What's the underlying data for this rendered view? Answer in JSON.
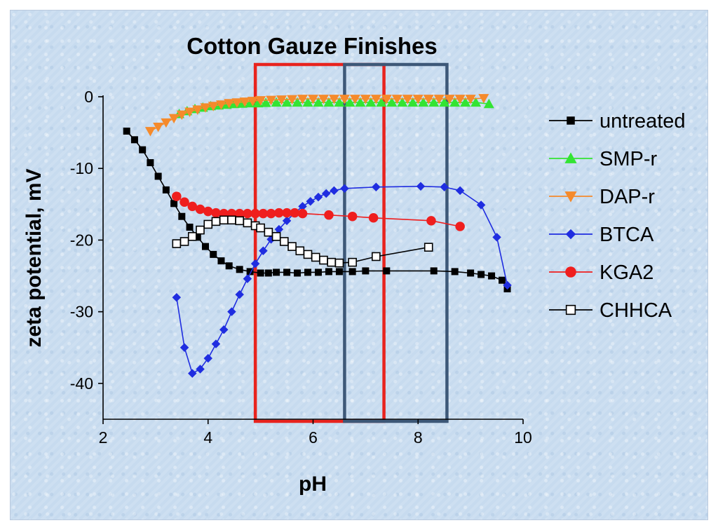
{
  "chart_data": {
    "type": "scatter",
    "title": "Cotton Gauze Finishes",
    "xlabel": "pH",
    "ylabel": "zeta potential, mV",
    "xlim": [
      2,
      10
    ],
    "ylim": [
      -45,
      0
    ],
    "xticks": [
      2,
      4,
      6,
      8,
      10
    ],
    "yticks": [
      0,
      -10,
      -20,
      -30,
      -40
    ],
    "grid": false,
    "legend_position": "right",
    "highlight_boxes": [
      {
        "color": "#e8231e",
        "x_range": [
          4.9,
          7.35
        ]
      },
      {
        "color": "#3d5878",
        "x_range": [
          6.6,
          8.55
        ]
      }
    ],
    "series": [
      {
        "name": "untreated",
        "color": "#000000",
        "marker": "square-filled",
        "x": [
          2.45,
          2.6,
          2.75,
          2.9,
          3.05,
          3.2,
          3.35,
          3.5,
          3.65,
          3.8,
          3.95,
          4.1,
          4.25,
          4.4,
          4.6,
          4.8,
          5.0,
          5.15,
          5.3,
          5.5,
          5.7,
          5.9,
          6.1,
          6.3,
          6.5,
          6.75,
          7.0,
          7.4,
          8.3,
          8.7,
          9.0,
          9.2,
          9.4,
          9.6,
          9.7
        ],
        "y": [
          -4.8,
          -6.0,
          -7.4,
          -9.2,
          -11.1,
          -13.0,
          -14.9,
          -16.7,
          -18.2,
          -19.6,
          -20.9,
          -22.0,
          -22.9,
          -23.6,
          -24.1,
          -24.4,
          -24.6,
          -24.6,
          -24.5,
          -24.5,
          -24.6,
          -24.5,
          -24.5,
          -24.4,
          -24.4,
          -24.4,
          -24.3,
          -24.3,
          -24.3,
          -24.4,
          -24.6,
          -24.8,
          -25.0,
          -25.6,
          -26.8
        ]
      },
      {
        "name": "SMP-r",
        "color": "#33e433",
        "marker": "triangle-up",
        "x": [
          3.45,
          3.6,
          3.75,
          3.9,
          4.05,
          4.2,
          4.35,
          4.5,
          4.65,
          4.8,
          4.95,
          5.1,
          5.3,
          5.5,
          5.7,
          5.9,
          6.1,
          6.3,
          6.5,
          6.7,
          6.9,
          7.1,
          7.3,
          7.5,
          7.7,
          7.9,
          8.1,
          8.3,
          8.5,
          8.7,
          8.9,
          9.1,
          9.35
        ],
        "y": [
          -2.4,
          -2.0,
          -1.7,
          -1.5,
          -1.3,
          -1.2,
          -1.1,
          -1.0,
          -0.95,
          -0.9,
          -0.9,
          -0.85,
          -0.8,
          -0.8,
          -0.8,
          -0.8,
          -0.8,
          -0.8,
          -0.8,
          -0.8,
          -0.8,
          -0.8,
          -0.8,
          -0.8,
          -0.8,
          -0.8,
          -0.8,
          -0.8,
          -0.8,
          -0.8,
          -0.8,
          -0.8,
          -1.0
        ]
      },
      {
        "name": "DAP-r",
        "color": "#f58a2b",
        "marker": "triangle-down",
        "x": [
          2.9,
          3.05,
          3.2,
          3.35,
          3.5,
          3.65,
          3.8,
          3.95,
          4.1,
          4.25,
          4.4,
          4.55,
          4.7,
          4.85,
          5.0,
          5.2,
          5.4,
          5.6,
          5.8,
          6.0,
          6.2,
          6.4,
          6.6,
          6.8,
          7.0,
          7.2,
          7.4,
          7.6,
          7.8,
          8.0,
          8.2,
          8.4,
          8.6,
          8.8,
          9.0,
          9.25
        ],
        "y": [
          -4.8,
          -4.2,
          -3.6,
          -3.0,
          -2.5,
          -2.1,
          -1.8,
          -1.5,
          -1.3,
          -1.1,
          -0.9,
          -0.8,
          -0.7,
          -0.6,
          -0.5,
          -0.45,
          -0.4,
          -0.35,
          -0.3,
          -0.3,
          -0.3,
          -0.3,
          -0.3,
          -0.3,
          -0.3,
          -0.3,
          -0.3,
          -0.3,
          -0.3,
          -0.3,
          -0.3,
          -0.3,
          -0.3,
          -0.3,
          -0.3,
          -0.2
        ]
      },
      {
        "name": "BTCA",
        "color": "#1f2de0",
        "marker": "diamond",
        "x": [
          3.4,
          3.55,
          3.7,
          3.85,
          4.0,
          4.15,
          4.3,
          4.45,
          4.6,
          4.75,
          4.9,
          5.05,
          5.2,
          5.35,
          5.5,
          5.65,
          5.8,
          5.95,
          6.1,
          6.25,
          6.4,
          6.6,
          7.2,
          8.05,
          8.5,
          8.8,
          9.2,
          9.5,
          9.7
        ],
        "y": [
          -28.0,
          -35.0,
          -38.6,
          -38.0,
          -36.5,
          -34.5,
          -32.5,
          -30.0,
          -27.6,
          -25.4,
          -23.3,
          -21.5,
          -19.9,
          -18.5,
          -17.3,
          -16.2,
          -15.3,
          -14.6,
          -14.0,
          -13.5,
          -13.1,
          -12.8,
          -12.6,
          -12.5,
          -12.6,
          -13.1,
          -15.1,
          -19.6,
          -26.3
        ]
      },
      {
        "name": "KGA2",
        "color": "#ef1e1e",
        "marker": "circle-filled",
        "x": [
          3.4,
          3.55,
          3.7,
          3.85,
          4.0,
          4.15,
          4.3,
          4.45,
          4.6,
          4.75,
          4.9,
          5.05,
          5.2,
          5.35,
          5.5,
          5.65,
          5.8,
          6.3,
          6.75,
          7.15,
          8.25,
          8.8
        ],
        "y": [
          -13.9,
          -14.7,
          -15.3,
          -15.7,
          -16.0,
          -16.2,
          -16.3,
          -16.3,
          -16.3,
          -16.3,
          -16.3,
          -16.3,
          -16.3,
          -16.2,
          -16.2,
          -16.2,
          -16.3,
          -16.5,
          -16.7,
          -16.9,
          -17.3,
          -18.1
        ]
      },
      {
        "name": "CHHCA",
        "color": "#000000",
        "marker": "square-open",
        "x": [
          3.4,
          3.55,
          3.7,
          3.85,
          4.0,
          4.15,
          4.3,
          4.45,
          4.6,
          4.75,
          4.9,
          5.0,
          5.15,
          5.3,
          5.45,
          5.6,
          5.75,
          5.9,
          6.05,
          6.2,
          6.35,
          6.5,
          6.75,
          7.2,
          8.2
        ],
        "y": [
          -20.5,
          -20.2,
          -19.5,
          -18.6,
          -17.8,
          -17.4,
          -17.2,
          -17.2,
          -17.3,
          -17.6,
          -18.0,
          -18.3,
          -18.9,
          -19.5,
          -20.2,
          -20.9,
          -21.5,
          -22.0,
          -22.4,
          -22.8,
          -23.1,
          -23.2,
          -23.1,
          -22.3,
          -21.0
        ]
      }
    ]
  }
}
